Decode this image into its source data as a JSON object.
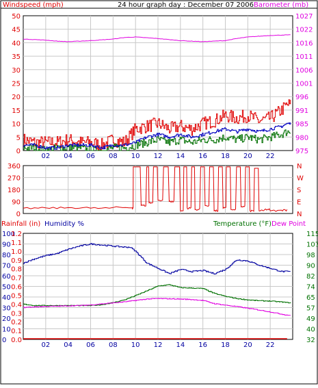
{
  "title": "24 hour graph day : December 07 2006",
  "colors": {
    "wind": "#e00000",
    "wind_avg": "#0000c0",
    "wind_low": "#007000",
    "baro": "#e000e0",
    "dir": "#e00000",
    "rain": "#e00000",
    "humidity": "#0000a0",
    "temperature": "#007000",
    "dewpoint": "#e000e0",
    "grid": "#c8c8c8",
    "frame": "#000000"
  },
  "chart_data": [
    {
      "type": "line",
      "left_label": "Windspeed (mph)",
      "right_label": "Barometer (mb)",
      "x_ticks": [
        "02",
        "04",
        "06",
        "08",
        "10",
        "12",
        "14",
        "16",
        "18",
        "20",
        "22"
      ],
      "left_ticks": [
        "0",
        "5",
        "10",
        "15",
        "20",
        "25",
        "30",
        "35",
        "40",
        "45",
        "50"
      ],
      "right_ticks": [
        "975",
        "980",
        "985",
        "991",
        "996",
        "1001",
        "1006",
        "1011",
        "1016",
        "1022",
        "1027"
      ],
      "x_range": [
        0,
        24
      ],
      "left_range": [
        0,
        50
      ],
      "right_range": [
        975,
        1027
      ],
      "series": [
        {
          "key": "gust",
          "x": [
            0,
            1,
            2,
            3,
            4,
            5,
            6,
            7,
            8,
            9,
            10,
            11,
            12,
            13,
            14,
            15,
            16,
            17,
            18,
            19,
            20,
            21,
            22,
            23,
            23.5
          ],
          "values": [
            4,
            3,
            3,
            3,
            4,
            3,
            3,
            2,
            4,
            3,
            8,
            9,
            10,
            8,
            9,
            8,
            10,
            11,
            13,
            12,
            13,
            11,
            12,
            15,
            17
          ]
        },
        {
          "key": "average",
          "x": [
            0,
            1,
            2,
            3,
            4,
            5,
            6,
            7,
            8,
            9,
            10,
            11,
            12,
            13,
            14,
            15,
            16,
            17,
            18,
            19,
            20,
            21,
            22,
            23,
            23.5
          ],
          "values": [
            2,
            2,
            1,
            1,
            2,
            2,
            2,
            1,
            2,
            2,
            3,
            5,
            6,
            5,
            6,
            5,
            6,
            7,
            8,
            7,
            8,
            7,
            8,
            9,
            10
          ]
        },
        {
          "key": "low",
          "x": [
            0,
            1,
            2,
            3,
            4,
            5,
            6,
            7,
            8,
            9,
            10,
            11,
            12,
            13,
            14,
            15,
            16,
            17,
            18,
            19,
            20,
            21,
            22,
            23,
            23.5
          ],
          "values": [
            1,
            1,
            0,
            1,
            1,
            1,
            0,
            0,
            1,
            1,
            2,
            3,
            4,
            3,
            4,
            3,
            4,
            4,
            5,
            4,
            5,
            4,
            5,
            6,
            7
          ]
        },
        {
          "key": "barometer",
          "x": [
            0,
            2,
            3,
            4,
            6,
            8,
            9,
            10,
            12,
            14,
            15,
            16,
            18,
            19,
            20,
            22,
            23.5
          ],
          "values": [
            1018.0,
            1017.6,
            1017.2,
            1017.0,
            1017.4,
            1018.0,
            1018.6,
            1018.8,
            1018.2,
            1017.4,
            1017.2,
            1017.0,
            1017.4,
            1018.2,
            1018.8,
            1019.4,
            1019.6
          ]
        }
      ]
    },
    {
      "type": "line",
      "left_ticks": [
        "360",
        "270",
        "180",
        "90",
        "0"
      ],
      "right_ticks": [
        "N",
        "W",
        "S",
        "E",
        "N"
      ],
      "x_range": [
        0,
        24
      ],
      "left_range": [
        0,
        360
      ],
      "series": [
        {
          "key": "direction",
          "x": [
            0,
            2,
            4,
            6,
            8,
            9.7,
            9.8,
            10,
            10.5,
            11,
            11.2,
            11.6,
            12,
            12.5,
            13,
            13.5,
            14,
            14.3,
            14.6,
            15,
            15.3,
            15.8,
            16.2,
            16.6,
            17,
            17.4,
            17.8,
            18.1,
            18.5,
            19,
            19.4,
            19.8,
            20.2,
            20.6,
            21,
            21.5,
            22,
            23,
            23.5
          ],
          "values": [
            40,
            42,
            44,
            40,
            45,
            42,
            350,
            350,
            60,
            350,
            80,
            350,
            100,
            350,
            90,
            350,
            20,
            350,
            40,
            350,
            30,
            350,
            60,
            350,
            20,
            350,
            40,
            350,
            30,
            350,
            50,
            350,
            20,
            340,
            20,
            30,
            20,
            25,
            30
          ]
        }
      ]
    },
    {
      "type": "line",
      "left_label_a": "Rainfall (in)",
      "left_label_b": "Humidity %",
      "right_label_a": "Temperature (°F)",
      "right_label_b": "Dew Point",
      "x_ticks": [
        "02",
        "04",
        "06",
        "08",
        "10",
        "12",
        "14",
        "16",
        "18",
        "20",
        "22"
      ],
      "humidity_ticks": [
        "0",
        "10",
        "20",
        "30",
        "40",
        "50",
        "60",
        "70",
        "80",
        "90",
        "100"
      ],
      "rain_ticks": [
        "0.0",
        "0.1",
        "0.2",
        "0.3",
        "0.4",
        "0.5",
        "0.6",
        "0.7",
        "0.8",
        "0.9",
        "1.0",
        "1.1",
        "1.2"
      ],
      "temp_ticks": [
        "32",
        "40",
        "49",
        "57",
        "65",
        "74",
        "82",
        "90",
        "98",
        "107",
        "115"
      ],
      "x_range": [
        0,
        24
      ],
      "humidity_range": [
        0,
        100
      ],
      "temp_range": [
        32,
        115
      ],
      "series": [
        {
          "key": "humidity",
          "x": [
            0,
            1,
            2,
            3,
            4,
            5,
            6,
            7,
            8,
            9,
            9.5,
            10,
            11,
            12,
            13,
            14,
            15,
            16,
            17,
            18,
            19,
            20,
            21,
            22,
            23,
            23.5
          ],
          "values": [
            72,
            76,
            79,
            81,
            85,
            88,
            90,
            89,
            88,
            87,
            87,
            83,
            72,
            67,
            62,
            66,
            64,
            65,
            62,
            66,
            75,
            74,
            70,
            67,
            64,
            64
          ]
        },
        {
          "key": "temperature",
          "x": [
            0,
            1,
            2,
            3,
            4,
            5,
            6,
            7,
            8,
            9,
            10,
            11,
            12,
            13,
            14,
            15,
            16,
            17,
            18,
            19,
            20,
            21,
            22,
            23,
            23.5
          ],
          "values": [
            59.6,
            58.5,
            58.5,
            58.5,
            58.5,
            58.5,
            58.5,
            59.2,
            60.8,
            63.0,
            66.3,
            70.0,
            73.8,
            74.8,
            72.5,
            72.2,
            71.8,
            68.0,
            65.7,
            64.0,
            62.9,
            62.3,
            62.0,
            61.3,
            60.8
          ]
        },
        {
          "key": "dewpoint",
          "x": [
            0,
            1,
            2,
            3,
            4,
            5,
            6,
            7,
            8,
            9,
            10,
            11,
            12,
            13,
            14,
            15,
            16,
            17,
            18,
            19,
            20,
            21,
            22,
            23,
            23.5
          ],
          "values": [
            57.0,
            57.5,
            57.8,
            58.0,
            58.3,
            58.5,
            59.0,
            59.8,
            60.6,
            61.4,
            62.5,
            63.6,
            64.0,
            63.8,
            63.6,
            63.2,
            62.5,
            60.0,
            58.8,
            57.7,
            56.4,
            55.0,
            53.5,
            51.8,
            51.0
          ]
        },
        {
          "key": "rainfall",
          "x": [
            0,
            23.5
          ],
          "values": [
            0,
            0
          ]
        }
      ]
    }
  ]
}
